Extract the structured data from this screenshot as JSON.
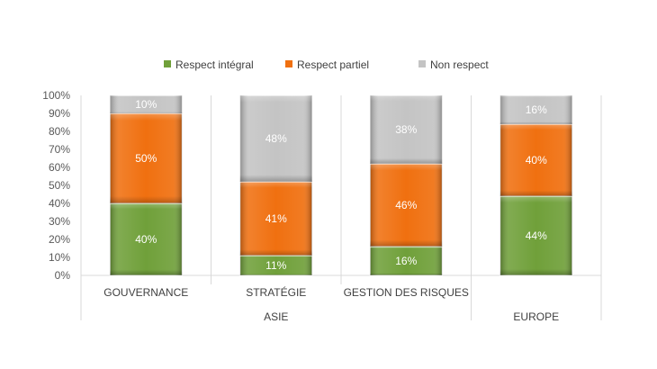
{
  "chart_data": {
    "type": "bar",
    "stacked": true,
    "percent_axis": true,
    "categories": [
      "GOUVERNANCE",
      "STRATÉGIE",
      "GESTION DES RISQUES",
      ""
    ],
    "groups": [
      {
        "label": "ASIE",
        "categories": [
          0,
          1,
          2
        ]
      },
      {
        "label": "EUROPE",
        "categories": [
          3
        ]
      }
    ],
    "series": [
      {
        "name": "Respect intégral",
        "color": "#70a03a",
        "values": [
          40,
          11,
          16,
          44
        ],
        "labels": [
          "40%",
          "11%",
          "16%",
          "44%"
        ]
      },
      {
        "name": "Respect partiel",
        "color": "#f07010",
        "values": [
          50,
          41,
          46,
          40
        ],
        "labels": [
          "50%",
          "41%",
          "46%",
          "40%"
        ]
      },
      {
        "name": "Non respect",
        "color": "#c4c4c4",
        "values": [
          10,
          48,
          38,
          16
        ],
        "labels": [
          "10%",
          "48%",
          "38%",
          "16%"
        ]
      }
    ],
    "yticks": [
      "0%",
      "10%",
      "20%",
      "30%",
      "40%",
      "50%",
      "60%",
      "70%",
      "80%",
      "90%",
      "100%"
    ],
    "ylim": [
      0,
      100
    ],
    "grid": false,
    "legend_position": "top"
  }
}
